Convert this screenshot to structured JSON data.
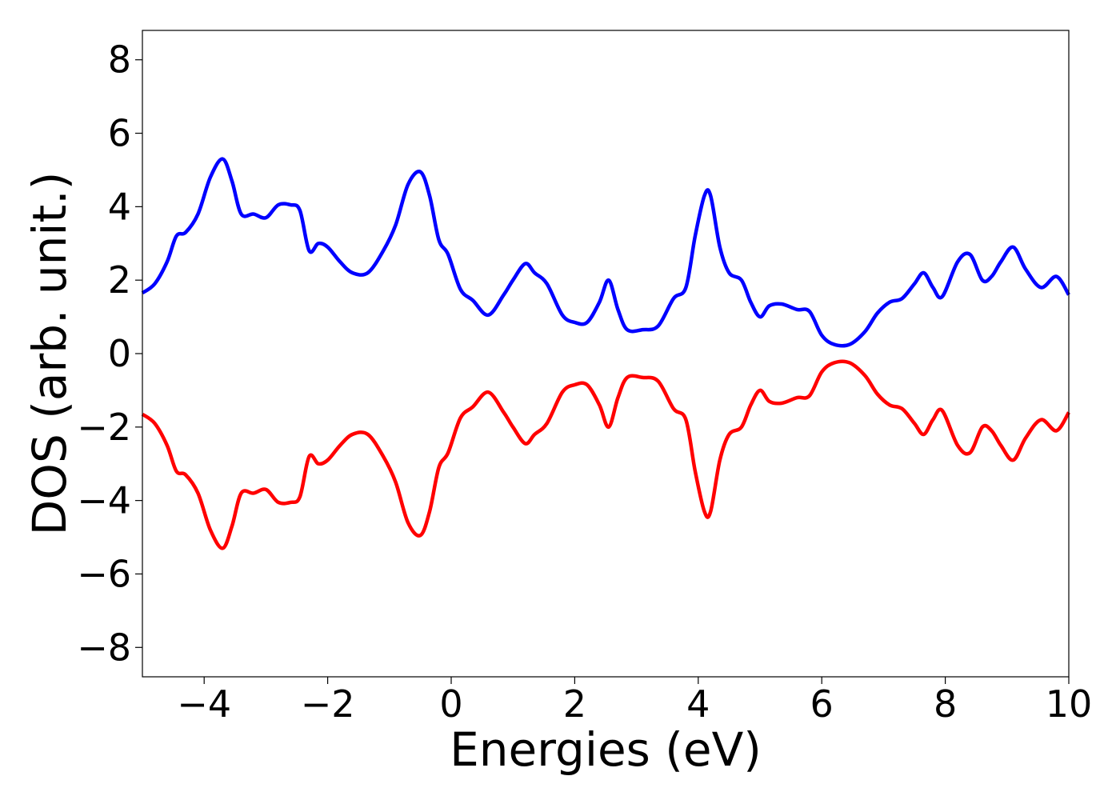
{
  "chart_data": {
    "type": "line",
    "title": "",
    "xlabel": "Energies (eV)",
    "ylabel": "DOS (arb. unit.)",
    "xlim": [
      -5,
      10
    ],
    "ylim": [
      -8.8,
      8.8
    ],
    "grid": false,
    "xticks": [
      -4,
      -2,
      0,
      2,
      4,
      6,
      8,
      10
    ],
    "xtick_labels": [
      "−4",
      "−2",
      "0",
      "2",
      "4",
      "6",
      "8",
      "10"
    ],
    "yticks": [
      8,
      6,
      4,
      2,
      0,
      -2,
      -4,
      -6,
      -8
    ],
    "ytick_labels": [
      "8",
      "6",
      "4",
      "2",
      "0",
      "−2",
      "−4",
      "−6",
      "−8"
    ],
    "colors": {
      "spin_up": "#0000ff",
      "spin_down": "#ff0000"
    },
    "series": [
      {
        "color": "#0000ff",
        "x": [
          -5.0,
          -4.8,
          -4.6,
          -4.45,
          -4.3,
          -4.1,
          -3.9,
          -3.7,
          -3.55,
          -3.4,
          -3.2,
          -3.0,
          -2.8,
          -2.6,
          -2.45,
          -2.3,
          -2.15,
          -2.0,
          -1.8,
          -1.6,
          -1.35,
          -1.1,
          -0.9,
          -0.7,
          -0.5,
          -0.35,
          -0.2,
          -0.05,
          0.15,
          0.35,
          0.6,
          0.85,
          1.0,
          1.2,
          1.35,
          1.55,
          1.8,
          2.0,
          2.2,
          2.4,
          2.55,
          2.7,
          2.85,
          3.1,
          3.35,
          3.6,
          3.8,
          3.95,
          4.1,
          4.2,
          4.35,
          4.5,
          4.7,
          4.85,
          5.0,
          5.15,
          5.35,
          5.6,
          5.8,
          6.0,
          6.2,
          6.45,
          6.7,
          6.9,
          7.1,
          7.3,
          7.5,
          7.65,
          7.8,
          7.95,
          8.2,
          8.4,
          8.6,
          8.75,
          8.9,
          9.1,
          9.3,
          9.55,
          9.8,
          10.0
        ],
        "y": [
          1.65,
          1.9,
          2.5,
          3.2,
          3.3,
          3.8,
          4.8,
          5.3,
          4.7,
          3.8,
          3.8,
          3.7,
          4.05,
          4.05,
          3.9,
          2.8,
          3.0,
          2.9,
          2.5,
          2.2,
          2.2,
          2.8,
          3.5,
          4.6,
          4.95,
          4.3,
          3.1,
          2.7,
          1.75,
          1.45,
          1.05,
          1.6,
          2.0,
          2.45,
          2.2,
          1.9,
          1.05,
          0.85,
          0.85,
          1.4,
          2.0,
          1.2,
          0.65,
          0.65,
          0.75,
          1.5,
          1.8,
          3.2,
          4.3,
          4.3,
          2.9,
          2.2,
          2.0,
          1.4,
          1.0,
          1.3,
          1.35,
          1.2,
          1.15,
          0.5,
          0.25,
          0.25,
          0.6,
          1.1,
          1.4,
          1.5,
          1.9,
          2.2,
          1.8,
          1.55,
          2.5,
          2.7,
          2.0,
          2.1,
          2.5,
          2.9,
          2.3,
          1.8,
          2.1,
          1.6
        ]
      },
      {
        "color": "#ff0000",
        "x": [
          -5.0,
          -4.8,
          -4.6,
          -4.45,
          -4.3,
          -4.1,
          -3.9,
          -3.7,
          -3.55,
          -3.4,
          -3.2,
          -3.0,
          -2.8,
          -2.6,
          -2.45,
          -2.3,
          -2.15,
          -2.0,
          -1.8,
          -1.6,
          -1.35,
          -1.1,
          -0.9,
          -0.7,
          -0.5,
          -0.35,
          -0.2,
          -0.05,
          0.15,
          0.35,
          0.6,
          0.85,
          1.0,
          1.2,
          1.35,
          1.55,
          1.8,
          2.0,
          2.2,
          2.4,
          2.55,
          2.7,
          2.85,
          3.1,
          3.35,
          3.6,
          3.8,
          3.95,
          4.1,
          4.2,
          4.35,
          4.5,
          4.7,
          4.85,
          5.0,
          5.15,
          5.35,
          5.6,
          5.8,
          6.0,
          6.2,
          6.45,
          6.7,
          6.9,
          7.1,
          7.3,
          7.5,
          7.65,
          7.8,
          7.95,
          8.2,
          8.4,
          8.6,
          8.75,
          8.9,
          9.1,
          9.3,
          9.55,
          9.8,
          10.0
        ],
        "y": [
          -1.65,
          -1.9,
          -2.5,
          -3.2,
          -3.3,
          -3.8,
          -4.8,
          -5.3,
          -4.7,
          -3.8,
          -3.8,
          -3.7,
          -4.05,
          -4.05,
          -3.9,
          -2.8,
          -3.0,
          -2.9,
          -2.5,
          -2.2,
          -2.2,
          -2.8,
          -3.5,
          -4.6,
          -4.95,
          -4.3,
          -3.1,
          -2.7,
          -1.75,
          -1.45,
          -1.05,
          -1.6,
          -2.0,
          -2.45,
          -2.2,
          -1.9,
          -1.05,
          -0.85,
          -0.85,
          -1.4,
          -2.0,
          -1.2,
          -0.65,
          -0.65,
          -0.75,
          -1.5,
          -1.8,
          -3.2,
          -4.3,
          -4.3,
          -2.9,
          -2.2,
          -2.0,
          -1.4,
          -1.0,
          -1.3,
          -1.35,
          -1.2,
          -1.15,
          -0.5,
          -0.25,
          -0.25,
          -0.6,
          -1.1,
          -1.4,
          -1.5,
          -1.9,
          -2.2,
          -1.8,
          -1.55,
          -2.5,
          -2.7,
          -2.0,
          -2.1,
          -2.5,
          -2.9,
          -2.3,
          -1.8,
          -2.1,
          -1.6
        ]
      }
    ]
  }
}
